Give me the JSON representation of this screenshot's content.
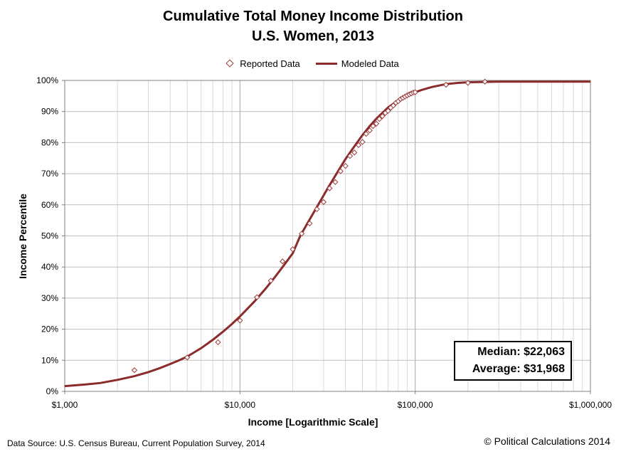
{
  "chart_data": {
    "type": "line",
    "title": "Cumulative Total Money Income Distribution",
    "subtitle": "U.S. Women, 2013",
    "xlabel": "Income [Logarithmic Scale]",
    "ylabel": "Income Percentile",
    "x_scale": "log",
    "xlim": [
      1000,
      1000000
    ],
    "ylim": [
      0,
      100
    ],
    "x_ticks": [
      1000,
      10000,
      100000,
      1000000
    ],
    "x_tick_labels": [
      "$1,000",
      "$10,000",
      "$100,000",
      "$1,000,000"
    ],
    "y_ticks": [
      0,
      10,
      20,
      30,
      40,
      50,
      60,
      70,
      80,
      90,
      100
    ],
    "y_tick_labels": [
      "0%",
      "10%",
      "20%",
      "30%",
      "40%",
      "50%",
      "60%",
      "70%",
      "80%",
      "90%",
      "100%"
    ],
    "grid": true,
    "legend": {
      "position": "top-center",
      "entries": [
        "Reported Data",
        "Modeled Data"
      ]
    },
    "series": [
      {
        "name": "Reported Data",
        "style": "diamond-markers",
        "color": "#9b3b3b",
        "x": [
          2500,
          5000,
          7500,
          10000,
          12500,
          15000,
          17500,
          20000,
          22500,
          25000,
          27500,
          30000,
          32500,
          35000,
          37500,
          40000,
          42500,
          45000,
          47500,
          50000,
          52500,
          55000,
          57500,
          60000,
          62500,
          65000,
          67500,
          70000,
          72500,
          75000,
          77500,
          80000,
          82500,
          85000,
          87500,
          90000,
          92500,
          95000,
          97500,
          100000,
          150000,
          200000,
          250000
        ],
        "y": [
          6.8,
          10.9,
          15.8,
          22.8,
          30.3,
          35.6,
          41.8,
          45.7,
          50.7,
          54.0,
          58.6,
          60.9,
          65.3,
          67.3,
          70.8,
          72.5,
          75.7,
          76.8,
          79.2,
          80.2,
          82.8,
          83.9,
          85.3,
          86.1,
          87.6,
          88.5,
          89.5,
          90.2,
          91.2,
          91.9,
          92.8,
          93.3,
          94.0,
          94.4,
          94.8,
          95.2,
          95.5,
          95.8,
          96.1,
          96.2,
          98.6,
          99.2,
          99.6
        ]
      },
      {
        "name": "Modeled Data",
        "style": "line",
        "color": "#8b2b2b",
        "x": [
          1000,
          1300,
          1600,
          2000,
          2500,
          3000,
          3500,
          4000,
          4500,
          5000,
          6000,
          7000,
          8000,
          9000,
          10000,
          12000,
          14000,
          16000,
          18000,
          20000,
          22063,
          25000,
          28000,
          31968,
          36000,
          40000,
          45000,
          50000,
          55000,
          60000,
          70000,
          80000,
          90000,
          100000,
          110000,
          125000,
          150000,
          175000,
          200000,
          300000,
          500000,
          1000000
        ],
        "y": [
          1.7,
          2.2,
          2.7,
          3.7,
          4.9,
          6.2,
          7.5,
          8.8,
          10.0,
          11.2,
          13.9,
          16.6,
          19.2,
          21.7,
          24.1,
          28.7,
          33.0,
          37.1,
          40.9,
          44.4,
          50.0,
          55.3,
          60.1,
          65.7,
          70.5,
          74.7,
          78.8,
          82.4,
          85.3,
          87.7,
          91.3,
          93.6,
          95.2,
          96.2,
          97.0,
          97.9,
          98.8,
          99.2,
          99.4,
          99.6,
          99.6,
          99.6
        ]
      }
    ],
    "annotations": {
      "median_label": "Median:",
      "median_value": "$22,063",
      "average_label": "Average:",
      "average_value": "$31,968"
    }
  },
  "footer": {
    "source": "Data Source:  U.S. Census Bureau, Current Population Survey,  2014",
    "copyright": "© Political Calculations 2014"
  }
}
